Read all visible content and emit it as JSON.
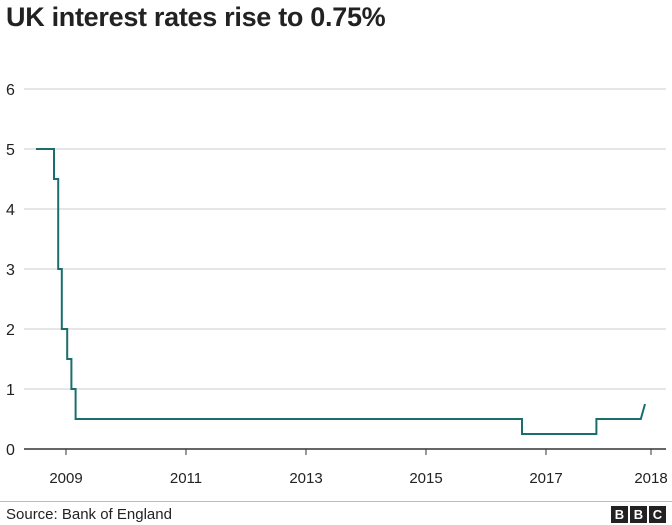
{
  "header": {
    "title": "UK interest rates rise to 0.75%"
  },
  "footer": {
    "source": "Source: Bank of England",
    "logo": "BBC"
  },
  "colors": {
    "line": "#1b6e6e",
    "grid": "#cccccc",
    "axis": "#333333",
    "text": "#222222"
  },
  "chart_data": {
    "type": "line",
    "title": "UK interest rates rise to 0.75%",
    "xlabel": "",
    "ylabel": "",
    "step": true,
    "grid": true,
    "ylim": [
      0,
      6
    ],
    "yticks": [
      0,
      1,
      2,
      3,
      4,
      5,
      6
    ],
    "xlim": [
      2008.3,
      2019.0
    ],
    "xticks": [
      {
        "label": "2009",
        "value": 2009
      },
      {
        "label": "2011",
        "value": 2011
      },
      {
        "label": "2013",
        "value": 2013
      },
      {
        "label": "2015",
        "value": 2015
      },
      {
        "label": "2017",
        "value": 2017
      },
      {
        "label": "2018",
        "value": 2018.75
      }
    ],
    "series": [
      {
        "color": "#1b6e6e",
        "points": [
          [
            2008.5,
            5.0
          ],
          [
            2008.8,
            5.0
          ],
          [
            2008.8,
            4.5
          ],
          [
            2008.87,
            4.5
          ],
          [
            2008.87,
            3.0
          ],
          [
            2008.93,
            3.0
          ],
          [
            2008.93,
            2.0
          ],
          [
            2009.02,
            2.0
          ],
          [
            2009.02,
            1.5
          ],
          [
            2009.09,
            1.5
          ],
          [
            2009.09,
            1.0
          ],
          [
            2009.16,
            1.0
          ],
          [
            2009.16,
            0.5
          ],
          [
            2016.6,
            0.5
          ],
          [
            2016.6,
            0.25
          ],
          [
            2017.84,
            0.25
          ],
          [
            2017.84,
            0.5
          ],
          [
            2018.58,
            0.5
          ],
          [
            2018.65,
            0.75
          ]
        ]
      }
    ]
  }
}
